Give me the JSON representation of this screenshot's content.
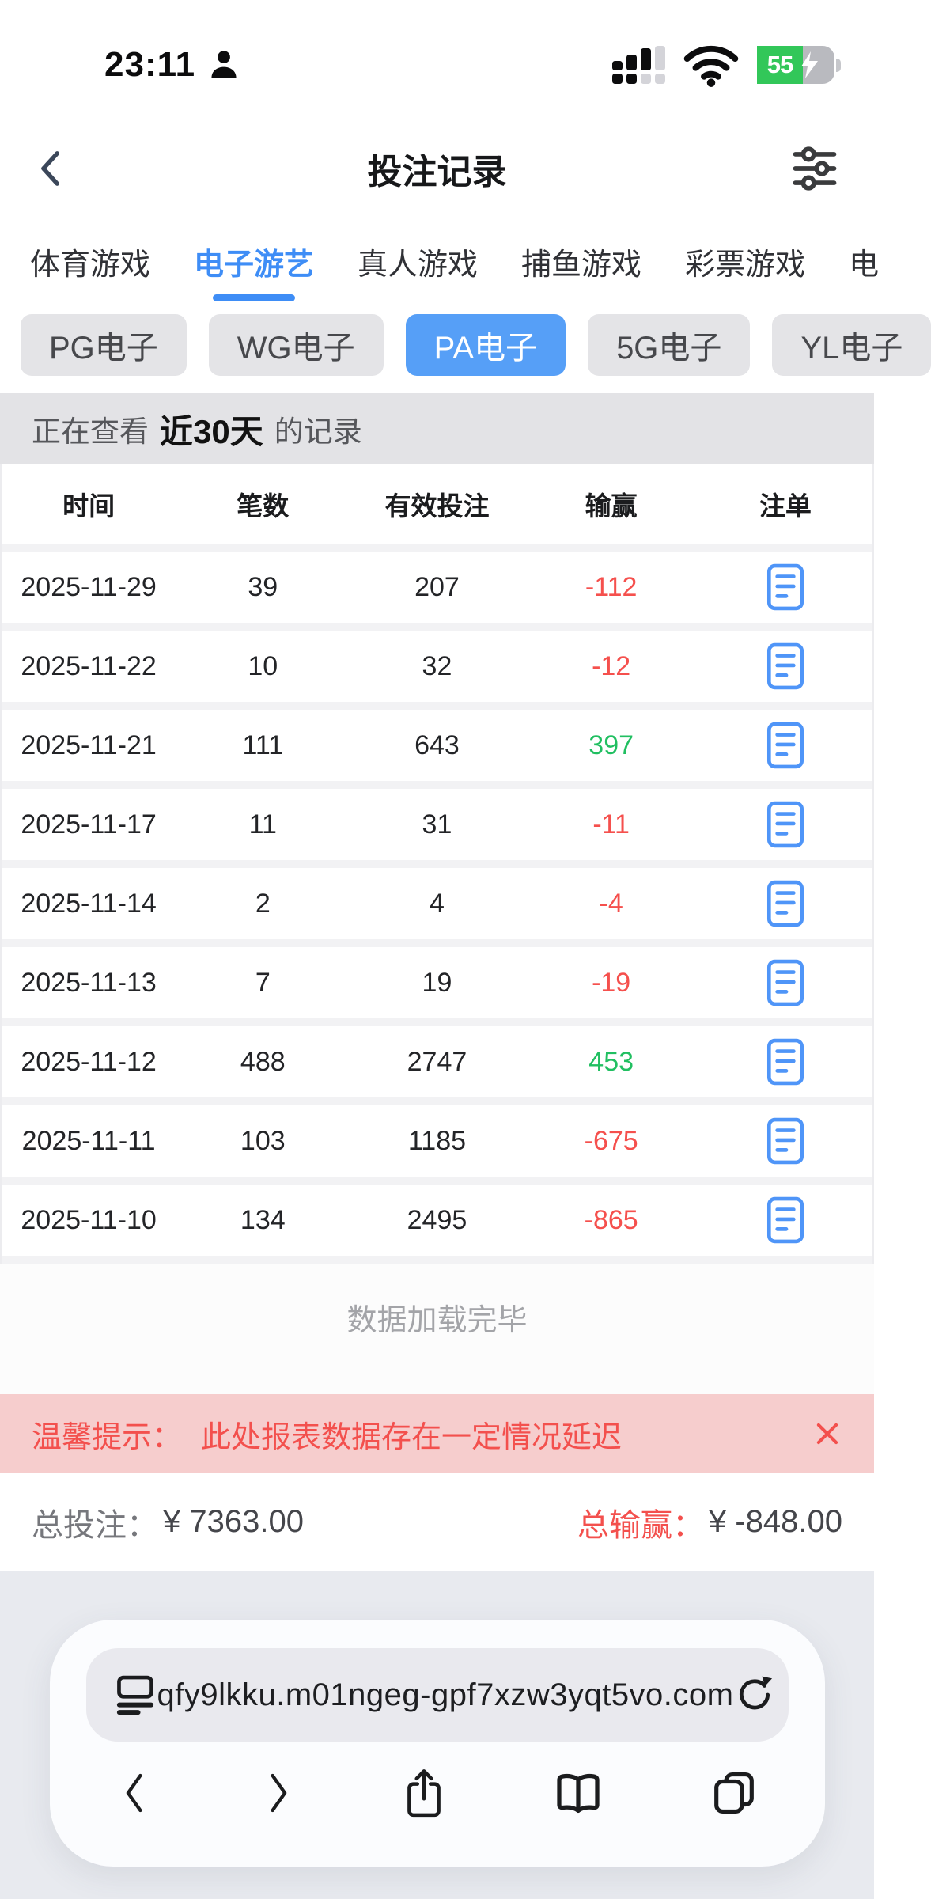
{
  "status_bar": {
    "time": "23:11",
    "battery_percent": "55"
  },
  "nav": {
    "title": "投注记录"
  },
  "tabs": {
    "items": [
      {
        "label": "体育游戏",
        "active": false
      },
      {
        "label": "电子游艺",
        "active": true
      },
      {
        "label": "真人游戏",
        "active": false
      },
      {
        "label": "捕鱼游戏",
        "active": false
      },
      {
        "label": "彩票游戏",
        "active": false
      },
      {
        "label": "电",
        "active": false
      }
    ]
  },
  "chips": {
    "items": [
      {
        "label": "PG电子",
        "active": false
      },
      {
        "label": "WG电子",
        "active": false
      },
      {
        "label": "PA电子",
        "active": true
      },
      {
        "label": "5G电子",
        "active": false
      },
      {
        "label": "YL电子",
        "active": false
      }
    ]
  },
  "view_bar": {
    "prefix": "正在查看",
    "range": "近30天",
    "suffix": "的记录"
  },
  "table": {
    "headers": [
      "时间",
      "笔数",
      "有效投注",
      "输赢",
      "注单"
    ],
    "rows": [
      {
        "date": "2025-11-29",
        "count": "39",
        "valid": "207",
        "winlose": "-112"
      },
      {
        "date": "2025-11-22",
        "count": "10",
        "valid": "32",
        "winlose": "-12"
      },
      {
        "date": "2025-11-21",
        "count": "111",
        "valid": "643",
        "winlose": "397"
      },
      {
        "date": "2025-11-17",
        "count": "11",
        "valid": "31",
        "winlose": "-11"
      },
      {
        "date": "2025-11-14",
        "count": "2",
        "valid": "4",
        "winlose": "-4"
      },
      {
        "date": "2025-11-13",
        "count": "7",
        "valid": "19",
        "winlose": "-19"
      },
      {
        "date": "2025-11-12",
        "count": "488",
        "valid": "2747",
        "winlose": "453"
      },
      {
        "date": "2025-11-11",
        "count": "103",
        "valid": "1185",
        "winlose": "-675"
      },
      {
        "date": "2025-11-10",
        "count": "134",
        "valid": "2495",
        "winlose": "-865"
      }
    ]
  },
  "footer_note": "数据加载完毕",
  "banner": {
    "label": "温馨提示：",
    "text": "此处报表数据存在一定情况延迟"
  },
  "totals": {
    "bet_label": "总投注：",
    "bet_value": "¥ 7363.00",
    "win_label": "总输赢：",
    "win_value": "¥ -848.00"
  },
  "browser": {
    "url": "qfy9lkku.m01ngeg-gpf7xzw3yqt5vo.com"
  },
  "icons": {
    "status_bar": [
      "person-icon",
      "cellular-signal-icon",
      "wifi-icon",
      "battery-charging-icon"
    ],
    "nav": [
      "back-chevron-icon",
      "filter-sliders-icon"
    ],
    "table": [
      "bet-slip-note-icon"
    ],
    "banner": [
      "close-x-icon"
    ],
    "browser": [
      "reader-view-icon",
      "reload-icon",
      "back-chevron-icon",
      "forward-chevron-icon",
      "share-icon",
      "bookmarks-book-icon",
      "tabs-overview-icon"
    ]
  },
  "colors": {
    "accent_blue": "#3e8df6",
    "chip_active_blue": "#569ff7",
    "slip_icon_blue": "#4f95f8",
    "negative_red": "#f5504d",
    "positive_green": "#21bf61",
    "banner_bg_pink": "#f6cdcd",
    "battery_green": "#32c759",
    "gray_bar_bg": "#e3e3e6",
    "browser_bg": "#e8eaef"
  }
}
